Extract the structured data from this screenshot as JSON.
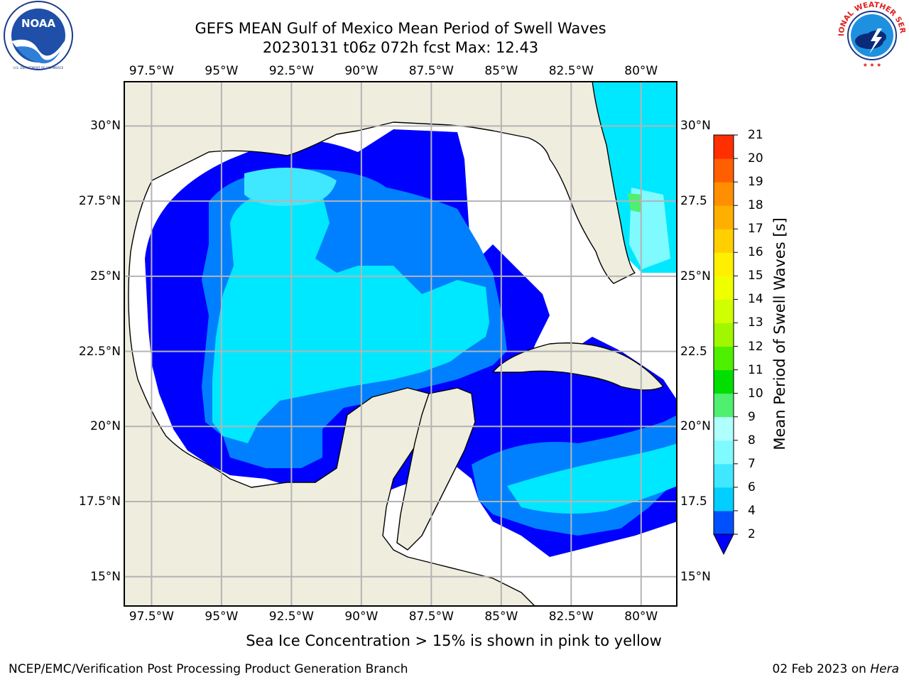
{
  "title": {
    "line1": "GEFS MEAN Gulf of Mexico Mean Period of Swell Waves",
    "line2": "20230131 t06z 072h fcst   Max: 12.43"
  },
  "logos": {
    "left": {
      "name": "noaa-logo",
      "text": "NOAA",
      "ring_text": "NATIONAL OCEANIC AND ATMOSPHERIC ADMINISTRATION · U.S. DEPARTMENT OF COMMERCE"
    },
    "right": {
      "name": "nws-logo",
      "ring_text": "NATIONAL WEATHER SERVICE"
    }
  },
  "map": {
    "lon_range": [
      -98.5,
      -78.7
    ],
    "lat_range": [
      14.0,
      31.5
    ],
    "lon_ticks": [
      "97.5°W",
      "95°W",
      "92.5°W",
      "90°W",
      "87.5°W",
      "85°W",
      "82.5°W",
      "80°W"
    ],
    "lat_ticks_left": [
      "30°N",
      "27.5°N",
      "25°N",
      "22.5°N",
      "20°N",
      "17.5°N",
      "15°N"
    ],
    "lat_ticks_right": [
      "30°N",
      "27.5",
      "25°N",
      "22.5",
      "20°N",
      "17.5",
      "15°N"
    ],
    "land_color": "#efedde",
    "grid_color": "#b4b4b4"
  },
  "colorbar": {
    "title": "Mean Period of Swell Waves [s]",
    "labels": [
      "2",
      "4",
      "6",
      "7",
      "8",
      "9",
      "10",
      "11",
      "12",
      "13",
      "14",
      "15",
      "16",
      "17",
      "18",
      "19",
      "20",
      "21"
    ],
    "colors": [
      "#0050ff",
      "#00cfff",
      "#3fe8ff",
      "#7ffaff",
      "#afffff",
      "#4fef6f",
      "#00df00",
      "#4fef00",
      "#a0f700",
      "#cfff00",
      "#f0ff00",
      "#ffef00",
      "#ffcf00",
      "#ffaf00",
      "#ff8f00",
      "#ff5f00",
      "#ff2f00",
      "#ff0000"
    ],
    "extend_min_color": "#0000ff"
  },
  "notes": {
    "sea_ice": "Sea Ice Concentration > 15% is shown in pink to yellow",
    "footer_left": "NCEP/EMC/Verification Post Processing Product Generation Branch",
    "footer_right_date": "02 Feb 2023 on ",
    "footer_right_host": "Hera"
  }
}
